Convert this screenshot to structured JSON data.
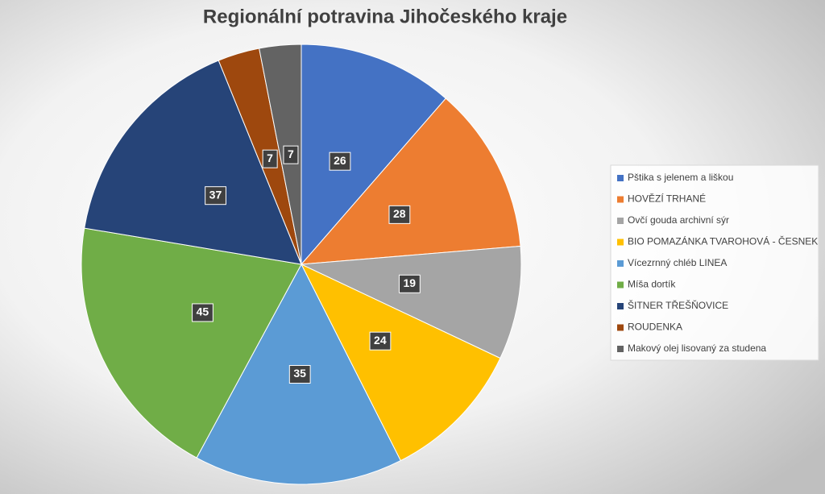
{
  "chart_data": {
    "type": "pie",
    "title": "Regionální potravina Jihočeského kraje",
    "categories": [
      "Pštika s jelenem a liškou",
      "HOVĚZÍ TRHANÉ",
      "Ovčí gouda archivní sýr",
      "BIO POMAZÁNKA TVAROHOVÁ - ČESNEK",
      "Vícezrnný chléb LINEA",
      "Míša dortík",
      "ŠITNER TŘEŠŇOVICE",
      "ROUDENKA",
      "Makový olej lisovaný za studena"
    ],
    "values": [
      26,
      28,
      19,
      24,
      35,
      45,
      37,
      7,
      7
    ],
    "colors": [
      "#4472c4",
      "#ed7d31",
      "#a5a5a5",
      "#ffc000",
      "#5b9bd5",
      "#70ad47",
      "#264478",
      "#9e480e",
      "#636363"
    ],
    "legend": "right"
  }
}
